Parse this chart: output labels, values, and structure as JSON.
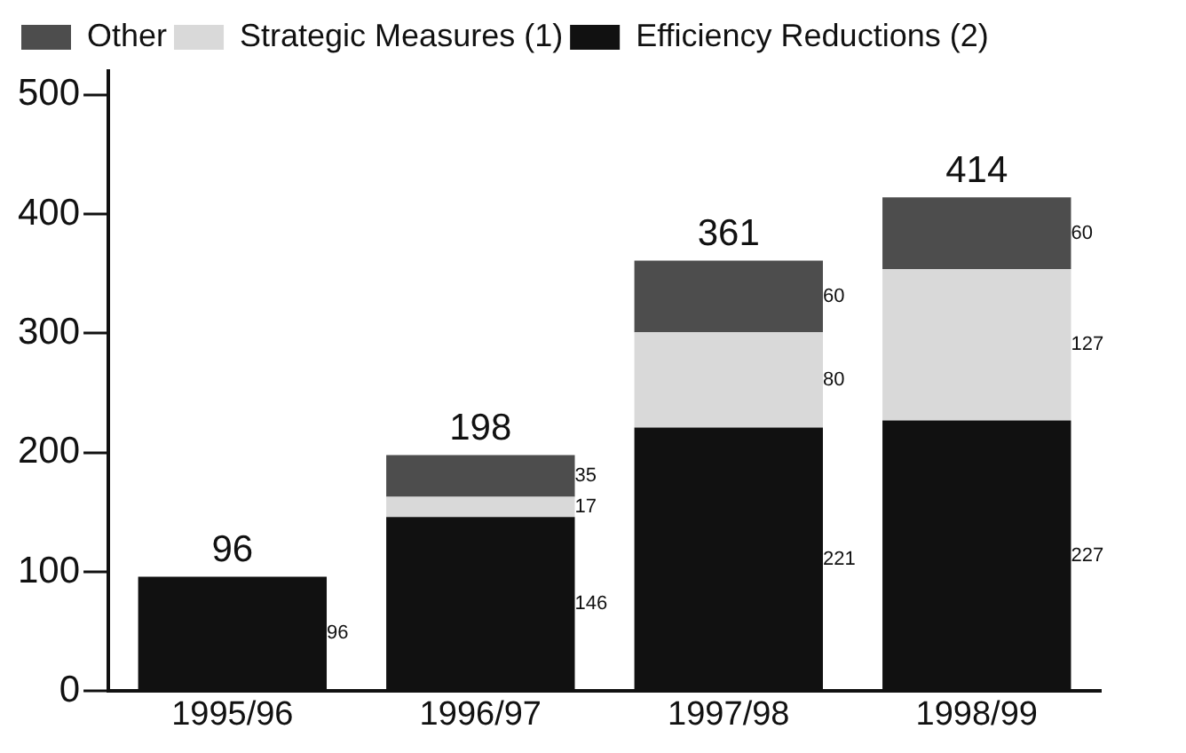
{
  "chart_data": {
    "type": "bar",
    "stacked": true,
    "categories": [
      "1995/96",
      "1996/97",
      "1997/98",
      "1998/99"
    ],
    "series": [
      {
        "name": "Efficiency Reductions (2)",
        "color": "#111111",
        "values": [
          96,
          146,
          221,
          227
        ]
      },
      {
        "name": "Strategic Measures (1)",
        "color": "#d9d9d9",
        "values": [
          null,
          17,
          80,
          127
        ]
      },
      {
        "name": "Other",
        "color": "#4d4d4d",
        "values": [
          null,
          35,
          60,
          60
        ]
      }
    ],
    "totals": [
      "96",
      "198",
      "361",
      "414"
    ],
    "ylim": [
      0,
      520
    ],
    "yticks": [
      0,
      100,
      200,
      300,
      400,
      500
    ],
    "grid": false,
    "legend": "top left",
    "data_labels": true
  }
}
